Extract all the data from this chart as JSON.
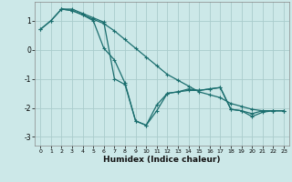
{
  "xlabel": "Humidex (Indice chaleur)",
  "background_color": "#cce8e8",
  "grid_color": "#aacccc",
  "line_color": "#1a6e6e",
  "xlim": [
    -0.5,
    23.5
  ],
  "ylim": [
    -3.3,
    1.65
  ],
  "yticks": [
    -3,
    -2,
    -1,
    0,
    1
  ],
  "xticks": [
    0,
    1,
    2,
    3,
    4,
    5,
    6,
    7,
    8,
    9,
    10,
    11,
    12,
    13,
    14,
    15,
    16,
    17,
    18,
    19,
    20,
    21,
    22,
    23
  ],
  "s1_x": [
    0,
    1,
    2,
    3,
    4,
    5,
    6,
    7,
    8,
    9,
    10,
    11,
    12,
    13,
    14,
    15,
    16,
    17,
    18,
    19,
    20,
    21,
    22,
    23
  ],
  "s1_y": [
    0.7,
    1.0,
    1.4,
    1.35,
    1.2,
    1.0,
    0.05,
    -0.35,
    -1.15,
    -2.45,
    -2.6,
    -2.1,
    -1.5,
    -1.45,
    -1.4,
    -1.4,
    -1.35,
    -1.3,
    -2.05,
    -2.1,
    -2.2,
    -2.1,
    -2.1,
    -2.1
  ],
  "s2_x": [
    2,
    3,
    4,
    5,
    6,
    7,
    8,
    9,
    10,
    11,
    12,
    13,
    14,
    15,
    16,
    17,
    18,
    19,
    20,
    21,
    22,
    23
  ],
  "s2_y": [
    1.4,
    1.4,
    1.25,
    1.1,
    0.95,
    -1.0,
    -1.2,
    -2.45,
    -2.6,
    -1.9,
    -1.5,
    -1.45,
    -1.35,
    -1.4,
    -1.35,
    -1.3,
    -2.05,
    -2.1,
    -2.3,
    -2.15,
    -2.1,
    -2.1
  ],
  "s3_x": [
    0,
    1,
    2,
    3,
    4,
    5,
    6,
    7,
    8,
    9,
    10,
    11,
    12,
    13,
    14,
    15,
    16,
    17,
    18,
    19,
    20,
    21,
    22,
    23
  ],
  "s3_y": [
    0.7,
    1.0,
    1.4,
    1.35,
    1.2,
    1.05,
    0.9,
    0.65,
    0.35,
    0.05,
    -0.25,
    -0.55,
    -0.85,
    -1.05,
    -1.25,
    -1.45,
    -1.55,
    -1.65,
    -1.85,
    -1.95,
    -2.05,
    -2.1,
    -2.1,
    -2.1
  ]
}
